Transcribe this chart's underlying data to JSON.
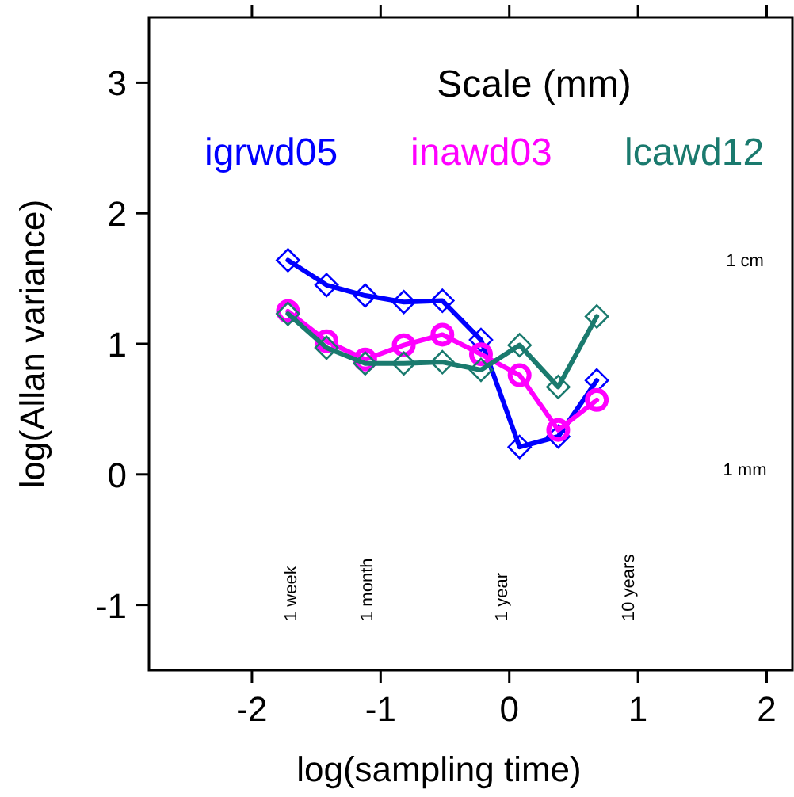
{
  "chart_data": {
    "type": "line",
    "xlabel": "log(sampling time)",
    "ylabel": "log(Allan variance)",
    "legend_title": "Scale (mm)",
    "legend": "top",
    "xlim": [
      -2.8,
      2.2
    ],
    "ylim": [
      -1.5,
      3.5
    ],
    "xticks": [
      -2,
      -1,
      0,
      1,
      2
    ],
    "yticks": [
      -1,
      0,
      1,
      2,
      3
    ],
    "grid": false,
    "x": [
      -1.72,
      -1.42,
      -1.12,
      -0.82,
      -0.52,
      -0.22,
      0.08,
      0.38,
      0.68
    ],
    "series": [
      {
        "name": "igrwd05",
        "color": "#0000ff",
        "marker": "diamond",
        "values": [
          1.64,
          1.45,
          1.37,
          1.32,
          1.33,
          1.03,
          0.21,
          0.29,
          0.72
        ]
      },
      {
        "name": "inawd03",
        "color": "#ff00ff",
        "marker": "circle",
        "values": [
          1.25,
          1.02,
          0.88,
          0.99,
          1.07,
          0.92,
          0.76,
          0.34,
          0.57
        ]
      },
      {
        "name": "lcawd12",
        "color": "#1a7a6e",
        "marker": "diamond",
        "values": [
          1.23,
          0.97,
          0.85,
          0.85,
          0.86,
          0.8,
          0.99,
          0.67,
          1.21
        ]
      }
    ],
    "annotations": [
      "1 cm",
      "1 mm",
      "1 week",
      "1 month",
      "1 year",
      "10 years"
    ]
  }
}
